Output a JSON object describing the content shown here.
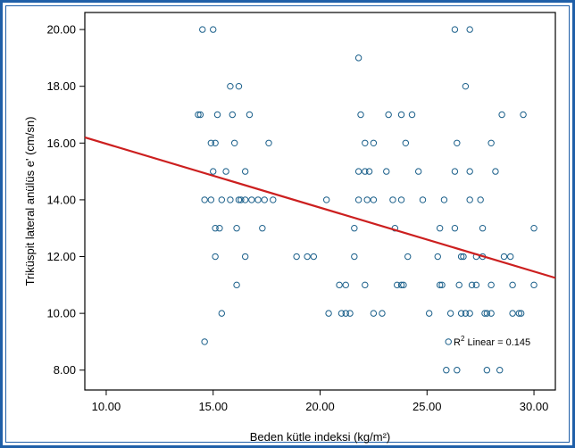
{
  "chart_data": {
    "type": "scatter",
    "xlabel": "Beden kütle indeksi (kg/m²)",
    "ylabel": "Triküspit lateral anülüs e' (cm/sn)",
    "xlim": [
      9.0,
      31.0
    ],
    "ylim": [
      7.3,
      20.6
    ],
    "x_ticks": [
      10,
      15,
      20,
      25,
      30
    ],
    "x_tick_labels": [
      "10.00",
      "15.00",
      "20.00",
      "25.00",
      "30.00"
    ],
    "y_ticks": [
      8,
      10,
      12,
      14,
      16,
      18,
      20
    ],
    "y_tick_labels": [
      "8.00",
      "10.00",
      "12.00",
      "14.00",
      "16.00",
      "18.00",
      "20.00"
    ],
    "grid": false,
    "fit_line": {
      "x": [
        9.0,
        31.0
      ],
      "y": [
        16.2,
        11.25
      ]
    },
    "annotation": {
      "prefix": "R",
      "sup": "2",
      "text": " Linear = 0.145"
    },
    "points": [
      [
        14.5,
        20
      ],
      [
        15.0,
        20
      ],
      [
        26.3,
        20
      ],
      [
        27.0,
        20
      ],
      [
        21.8,
        19
      ],
      [
        15.8,
        18
      ],
      [
        16.2,
        18
      ],
      [
        26.8,
        18
      ],
      [
        14.3,
        17
      ],
      [
        14.4,
        17
      ],
      [
        15.2,
        17
      ],
      [
        15.9,
        17
      ],
      [
        16.7,
        17
      ],
      [
        21.9,
        17
      ],
      [
        23.2,
        17
      ],
      [
        23.8,
        17
      ],
      [
        24.3,
        17
      ],
      [
        28.5,
        17
      ],
      [
        29.5,
        17
      ],
      [
        14.9,
        16
      ],
      [
        15.1,
        16
      ],
      [
        16.0,
        16
      ],
      [
        17.6,
        16
      ],
      [
        22.1,
        16
      ],
      [
        22.5,
        16
      ],
      [
        24.0,
        16
      ],
      [
        26.4,
        16
      ],
      [
        28.0,
        16
      ],
      [
        15.0,
        15
      ],
      [
        15.6,
        15
      ],
      [
        16.5,
        15
      ],
      [
        21.8,
        15
      ],
      [
        22.1,
        15
      ],
      [
        22.3,
        15
      ],
      [
        23.1,
        15
      ],
      [
        24.6,
        15
      ],
      [
        26.3,
        15
      ],
      [
        27.0,
        15
      ],
      [
        28.2,
        15
      ],
      [
        14.6,
        14
      ],
      [
        14.9,
        14
      ],
      [
        15.4,
        14
      ],
      [
        15.8,
        14
      ],
      [
        16.2,
        14
      ],
      [
        16.3,
        14
      ],
      [
        16.5,
        14
      ],
      [
        16.8,
        14
      ],
      [
        17.1,
        14
      ],
      [
        17.4,
        14
      ],
      [
        17.8,
        14
      ],
      [
        20.3,
        14
      ],
      [
        21.8,
        14
      ],
      [
        22.2,
        14
      ],
      [
        22.5,
        14
      ],
      [
        23.4,
        14
      ],
      [
        23.8,
        14
      ],
      [
        24.8,
        14
      ],
      [
        25.8,
        14
      ],
      [
        27.0,
        14
      ],
      [
        27.5,
        14
      ],
      [
        15.1,
        13
      ],
      [
        15.3,
        13
      ],
      [
        16.1,
        13
      ],
      [
        17.3,
        13
      ],
      [
        21.6,
        13
      ],
      [
        23.5,
        13
      ],
      [
        25.6,
        13
      ],
      [
        26.3,
        13
      ],
      [
        27.6,
        13
      ],
      [
        30.0,
        13
      ],
      [
        15.1,
        12
      ],
      [
        16.5,
        12
      ],
      [
        18.9,
        12
      ],
      [
        19.4,
        12
      ],
      [
        19.7,
        12
      ],
      [
        21.6,
        12
      ],
      [
        24.1,
        12
      ],
      [
        25.5,
        12
      ],
      [
        26.6,
        12
      ],
      [
        26.7,
        12
      ],
      [
        27.3,
        12
      ],
      [
        27.6,
        12
      ],
      [
        28.6,
        12
      ],
      [
        28.9,
        12
      ],
      [
        16.1,
        11
      ],
      [
        20.9,
        11
      ],
      [
        21.2,
        11
      ],
      [
        22.1,
        11
      ],
      [
        23.6,
        11
      ],
      [
        23.8,
        11
      ],
      [
        23.9,
        11
      ],
      [
        25.6,
        11
      ],
      [
        25.7,
        11
      ],
      [
        26.5,
        11
      ],
      [
        27.1,
        11
      ],
      [
        27.3,
        11
      ],
      [
        28.0,
        11
      ],
      [
        29.0,
        11
      ],
      [
        30.0,
        11
      ],
      [
        15.4,
        10
      ],
      [
        20.4,
        10
      ],
      [
        21.0,
        10
      ],
      [
        21.2,
        10
      ],
      [
        21.4,
        10
      ],
      [
        22.5,
        10
      ],
      [
        22.9,
        10
      ],
      [
        25.1,
        10
      ],
      [
        26.1,
        10
      ],
      [
        26.6,
        10
      ],
      [
        26.8,
        10
      ],
      [
        27.0,
        10
      ],
      [
        27.7,
        10
      ],
      [
        27.8,
        10
      ],
      [
        28.0,
        10
      ],
      [
        29.0,
        10
      ],
      [
        29.3,
        10
      ],
      [
        29.4,
        10
      ],
      [
        14.6,
        9
      ],
      [
        26.0,
        9
      ],
      [
        25.9,
        8
      ],
      [
        26.4,
        8
      ],
      [
        27.8,
        8
      ],
      [
        28.4,
        8
      ]
    ],
    "colors": {
      "frame": "#1f5fa8",
      "points": "#1a5f8a",
      "fit_line": "#cc1f1f",
      "axes": "#000000",
      "background": "#ffffff"
    }
  }
}
